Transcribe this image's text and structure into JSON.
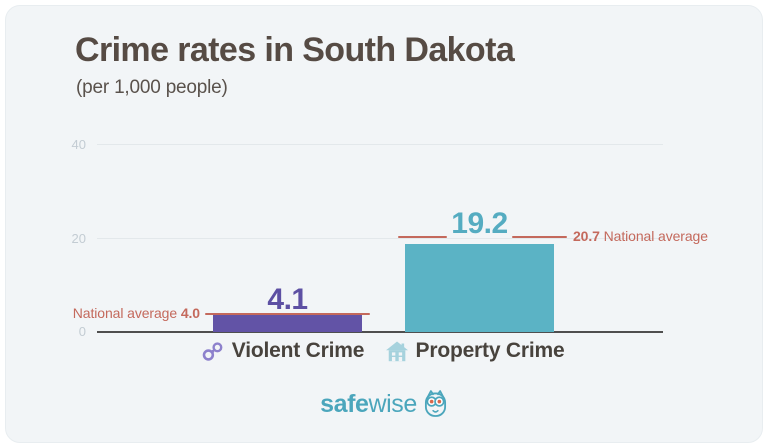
{
  "header": {
    "title": "Crime rates in South Dakota",
    "subtitle": "(per 1,000 people)"
  },
  "chart_data": {
    "type": "bar",
    "title": "Crime rates in South Dakota",
    "unit_note": "(per 1,000 people)",
    "categories": [
      "Violent Crime",
      "Property Crime"
    ],
    "values": [
      4.1,
      19.2
    ],
    "value_labels": [
      "4.1",
      "19.2"
    ],
    "national_average": {
      "violent": 4.0,
      "property": 20.7
    },
    "national_average_labels": {
      "violent_prefix": "National average",
      "violent_value": "4.0",
      "property_value": "20.7",
      "property_suffix": "National average"
    },
    "yticks": [
      "0",
      "20",
      "40"
    ],
    "ylim": [
      0,
      40
    ],
    "grid": "horizontal",
    "legend_position": "none",
    "bar_colors": {
      "violent": "#6253a6",
      "property": "#5bb3c5"
    },
    "value_label_colors": {
      "violent": "#5d50a3",
      "property": "#55acc1"
    },
    "annotation_color": "#c4695c",
    "category_icons": {
      "violent": "handcuffs-icon",
      "property": "house-icon"
    }
  },
  "footer": {
    "logo_bold": "safe",
    "logo_light": "wise",
    "logo_icon": "owl-icon",
    "logo_color": "#4ba6bc"
  }
}
